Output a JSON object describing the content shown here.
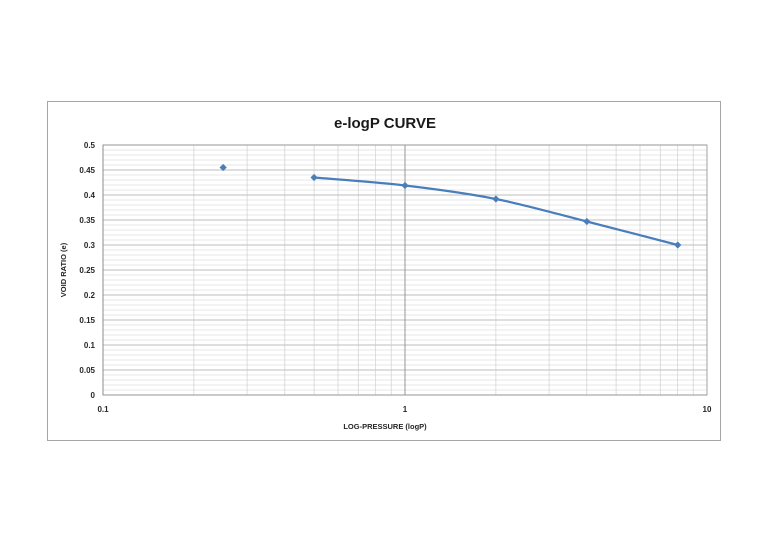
{
  "chart_data": {
    "type": "scatter",
    "title": "e-logP CURVE",
    "xlabel": "LOG-PRESSURE (logP)",
    "ylabel": "VOID RATIO (e)",
    "x_scale": "log",
    "xlim": [
      0.1,
      10
    ],
    "ylim": [
      0,
      0.5
    ],
    "x_ticks": [
      "0.1",
      "1",
      "10"
    ],
    "y_ticks": [
      "0",
      "0.05",
      "0.1",
      "0.15",
      "0.2",
      "0.25",
      "0.3",
      "0.35",
      "0.4",
      "0.45",
      "0.5"
    ],
    "grid": true,
    "series": [
      {
        "color": "#4a7ebb",
        "marker": "diamond",
        "points": [
          {
            "x": 0.25,
            "y": 0.455
          },
          {
            "x": 0.5,
            "y": 0.435
          },
          {
            "x": 1,
            "y": 0.419
          },
          {
            "x": 2,
            "y": 0.392
          },
          {
            "x": 4,
            "y": 0.347
          },
          {
            "x": 8,
            "y": 0.3
          }
        ],
        "line_from_index": 1
      }
    ]
  }
}
